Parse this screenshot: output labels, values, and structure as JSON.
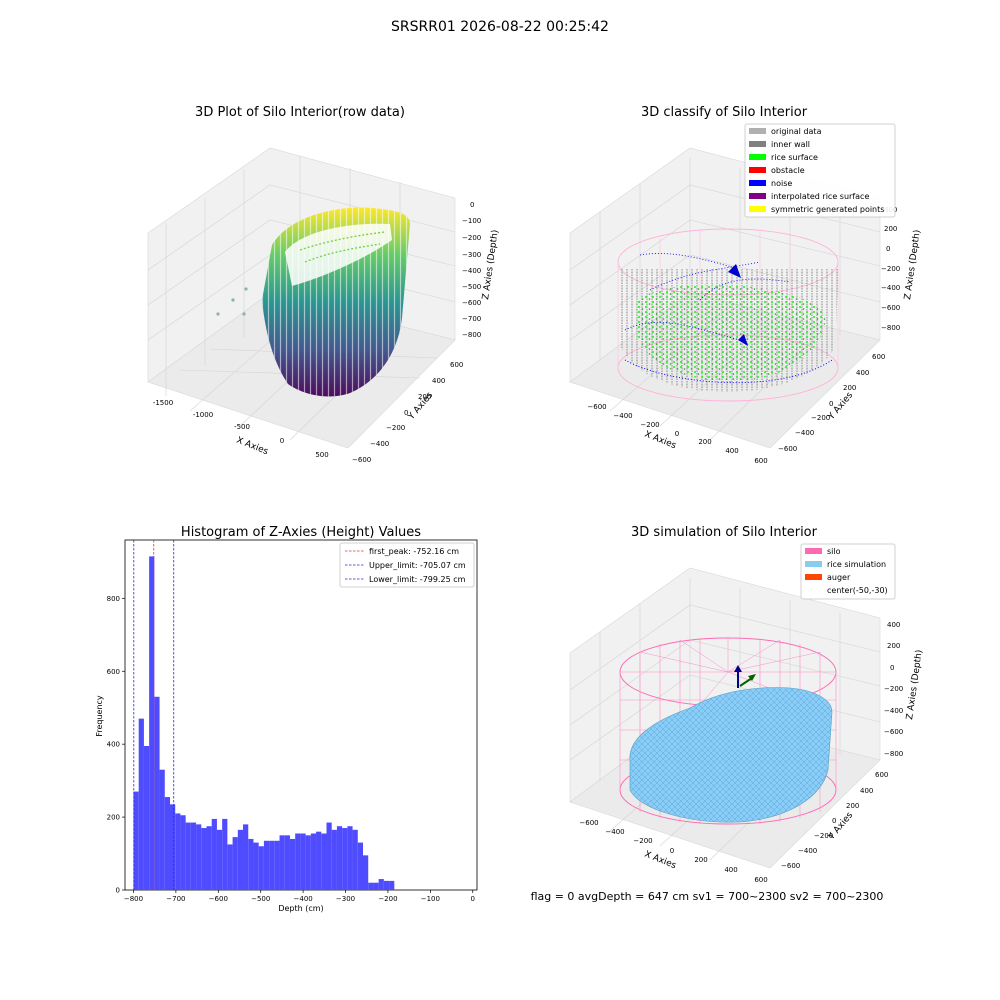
{
  "figure": {
    "suptitle": "SRSRR01 2026-08-22 00:25:42",
    "footer": "flag = 0     avgDepth = 647 cm  sv1 = 700~2300  sv2 = 700~2300"
  },
  "colors": {
    "hist_bar": "#4f4cff",
    "peak_line": "#e0302b",
    "limit_line": "#2a2ad0",
    "pane": "#f2f2f2",
    "grid": "#cfcfcf",
    "silo": "#ff69b4",
    "rice": "#87cefa",
    "auger": "#ff4500",
    "inner_wall": "#808080",
    "rice_surface": "#00ff00",
    "noise": "#0000ff"
  },
  "panels": {
    "raw": {
      "title": "3D Plot of Silo Interior(row data)",
      "xlabel": "X Axies",
      "ylabel": "Y Axies",
      "zlabel": "Z Axies (Depth)",
      "xticks": [
        "-1500",
        "-1000",
        "-500",
        "0",
        "500"
      ],
      "yticks": [
        "600",
        "400",
        "200",
        "0",
        "−200",
        "−400",
        "−600"
      ],
      "zticks": [
        "0",
        "−100",
        "−200",
        "−300",
        "−400",
        "−500",
        "−600",
        "−700",
        "−800"
      ]
    },
    "classify": {
      "title": "3D classify of Silo Interior",
      "xlabel": "X Axies",
      "ylabel": "Y Axies",
      "zlabel": "Z Axies (Depth)",
      "xticks": [
        "−600",
        "−400",
        "−200",
        "0",
        "200",
        "400",
        "600"
      ],
      "yticks": [
        "600",
        "400",
        "200",
        "0",
        "−200",
        "−400",
        "−600"
      ],
      "zticks": [
        "400",
        "200",
        "0",
        "−200",
        "−400",
        "−600",
        "−800"
      ],
      "legend": [
        {
          "label": "original data",
          "color": "#b0b0b0"
        },
        {
          "label": "inner wall",
          "color": "#808080"
        },
        {
          "label": "rice surface",
          "color": "#00ff00"
        },
        {
          "label": "obstacle",
          "color": "#ff0000"
        },
        {
          "label": "noise",
          "color": "#0000ff"
        },
        {
          "label": "interpolated rice surface",
          "color": "#800080"
        },
        {
          "label": "symmetric generated points",
          "color": "#ffff00"
        }
      ]
    },
    "sim": {
      "title": "3D simulation of Silo Interior",
      "xlabel": "X Axies",
      "ylabel": "Y Axies",
      "zlabel": "Z Axies (Depth)",
      "xticks": [
        "−600",
        "−400",
        "−200",
        "0",
        "200",
        "400",
        "600"
      ],
      "yticks": [
        "600",
        "400",
        "200",
        "0",
        "−200",
        "−400",
        "−600"
      ],
      "zticks": [
        "400",
        "200",
        "0",
        "−200",
        "−400",
        "−600",
        "−800"
      ],
      "legend": [
        {
          "label": "silo",
          "color": "#ff69b4"
        },
        {
          "label": "rice simulation",
          "color": "#87ceeb"
        },
        {
          "label": "auger",
          "color": "#ff4500"
        },
        {
          "label": "center(-50,-30)",
          "color": ""
        }
      ]
    }
  },
  "chart_data": {
    "type": "bar",
    "title": "Histogram of Z-Axies (Height) Values",
    "xlabel": "Depth (cm)",
    "ylabel": "Frequency",
    "xlim": [
      -820,
      10
    ],
    "ylim": [
      0,
      960
    ],
    "xticks": [
      -800,
      -700,
      -600,
      -500,
      -400,
      -300,
      -200,
      -100,
      0
    ],
    "yticks": [
      0,
      200,
      400,
      600,
      800
    ],
    "bin_start": -800,
    "bin_width": 12.3,
    "values": [
      270,
      470,
      395,
      915,
      530,
      330,
      255,
      235,
      210,
      205,
      185,
      185,
      180,
      170,
      175,
      195,
      165,
      195,
      125,
      145,
      165,
      180,
      140,
      130,
      120,
      135,
      135,
      135,
      150,
      150,
      140,
      155,
      155,
      150,
      155,
      160,
      155,
      185,
      165,
      175,
      170,
      175,
      165,
      130,
      95,
      20,
      20,
      30,
      25,
      25
    ],
    "vlines": [
      {
        "value": -752.16,
        "label": "first_peak: -752.16 cm",
        "style": "red"
      },
      {
        "value": -705.07,
        "label": "Upper_limit: -705.07 cm",
        "style": "blue"
      },
      {
        "value": -799.25,
        "label": "Lower_limit: -799.25 cm",
        "style": "blue"
      }
    ],
    "legend_loc": "upper right"
  }
}
